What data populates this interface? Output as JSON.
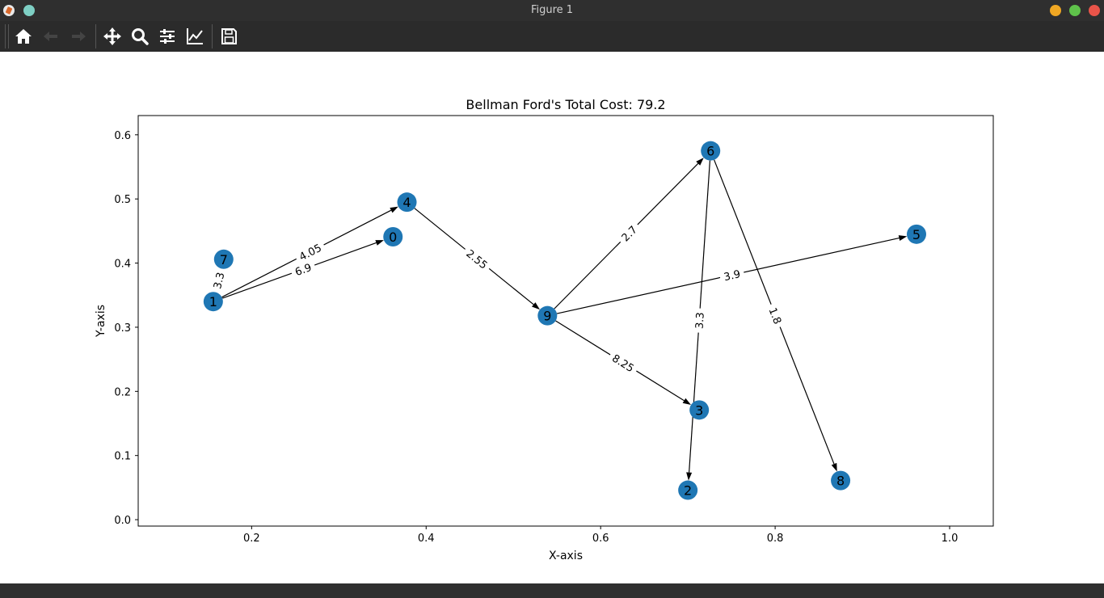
{
  "window": {
    "title": "Figure 1"
  },
  "toolbar": {
    "buttons": [
      {
        "icon": "home-icon",
        "label": "Home",
        "enabled": true
      },
      {
        "icon": "back-arrow-icon",
        "label": "Back",
        "enabled": false
      },
      {
        "icon": "forward-arrow-icon",
        "label": "Forward",
        "enabled": false
      },
      {
        "icon": "pan-move-icon",
        "label": "Pan",
        "enabled": true
      },
      {
        "icon": "zoom-magnifier-icon",
        "label": "Zoom",
        "enabled": true
      },
      {
        "icon": "configure-subplots-icon",
        "label": "Subplots",
        "enabled": true
      },
      {
        "icon": "edit-axes-icon",
        "label": "Customize",
        "enabled": true
      },
      {
        "icon": "save-floppy-icon",
        "label": "Save",
        "enabled": true
      }
    ]
  },
  "colors": {
    "node": "#1f77b4",
    "edge": "#000000",
    "titlebar": "#2f2f2f",
    "toolbar": "#2b2b2b",
    "close": "#e95449",
    "maximize": "#5fc34b",
    "minimize": "#f0a723"
  },
  "chart_data": {
    "type": "scatter",
    "title": "Bellman Ford's Total Cost: 79.2",
    "xlabel": "X-axis",
    "ylabel": "Y-axis",
    "xlim": [
      0.07,
      1.05
    ],
    "ylim": [
      -0.01,
      0.63
    ],
    "xticks": [
      0.2,
      0.4,
      0.6,
      0.8,
      1.0
    ],
    "xtick_labels": [
      "0.2",
      "0.4",
      "0.6",
      "0.8",
      "1.0"
    ],
    "yticks": [
      0.0,
      0.1,
      0.2,
      0.3,
      0.4,
      0.5,
      0.6
    ],
    "ytick_labels": [
      "0.0",
      "0.1",
      "0.2",
      "0.3",
      "0.4",
      "0.5",
      "0.6"
    ],
    "grid": false,
    "nodes": [
      {
        "id": "0",
        "x": 0.362,
        "y": 0.441
      },
      {
        "id": "1",
        "x": 0.156,
        "y": 0.34
      },
      {
        "id": "2",
        "x": 0.7,
        "y": 0.046
      },
      {
        "id": "3",
        "x": 0.713,
        "y": 0.171
      },
      {
        "id": "4",
        "x": 0.378,
        "y": 0.495
      },
      {
        "id": "5",
        "x": 0.962,
        "y": 0.445
      },
      {
        "id": "6",
        "x": 0.726,
        "y": 0.575
      },
      {
        "id": "7",
        "x": 0.168,
        "y": 0.406
      },
      {
        "id": "8",
        "x": 0.875,
        "y": 0.061
      },
      {
        "id": "9",
        "x": 0.539,
        "y": 0.318
      }
    ],
    "edges": [
      {
        "from": "1",
        "to": "4",
        "weight": "4.05",
        "directed": true
      },
      {
        "from": "1",
        "to": "0",
        "weight": "6.9",
        "directed": true
      },
      {
        "from": "1",
        "to": "7",
        "weight": "3.3",
        "directed": false
      },
      {
        "from": "4",
        "to": "9",
        "weight": "2.55",
        "directed": true
      },
      {
        "from": "9",
        "to": "6",
        "weight": "2.7",
        "directed": true
      },
      {
        "from": "9",
        "to": "5",
        "weight": "3.9",
        "directed": true
      },
      {
        "from": "9",
        "to": "3",
        "weight": "8.25",
        "directed": true
      },
      {
        "from": "6",
        "to": "2",
        "weight": "3.3",
        "directed": true
      },
      {
        "from": "6",
        "to": "8",
        "weight": "1.8",
        "directed": true
      }
    ]
  }
}
